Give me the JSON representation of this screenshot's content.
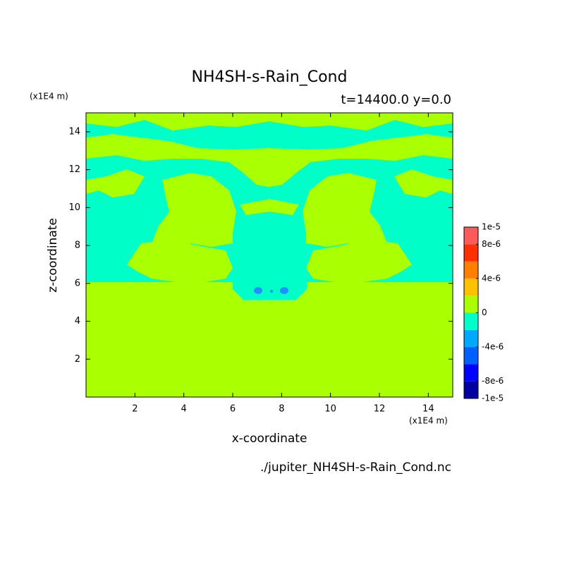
{
  "chart_data": {
    "type": "contour",
    "title": "NH4SH-s-Rain_Cond",
    "subtitle": "t=14400.0 y=0.0",
    "xlabel": "x-coordinate",
    "ylabel": "z-coordinate",
    "x_unit": "(x1E4 m)",
    "y_unit": "(x1E4 m)",
    "footer": "./jupiter_NH4SH-s-Rain_Cond.nc",
    "xlim": [
      0,
      15
    ],
    "ylim": [
      0,
      15
    ],
    "xticks": [
      2,
      4,
      6,
      8,
      10,
      12,
      14
    ],
    "yticks": [
      2,
      4,
      6,
      8,
      10,
      12,
      14
    ],
    "colorbar": {
      "bounds": [
        -1e-05,
        -8e-06,
        -6e-06,
        -4e-06,
        -2e-06,
        0,
        2e-06,
        4e-06,
        6e-06,
        8e-06,
        1e-05
      ],
      "colors": [
        "#0000a0",
        "#0000ff",
        "#0060ff",
        "#00a8ff",
        "#00ffc8",
        "#aaff00",
        "#ffc000",
        "#ff8000",
        "#ff3000",
        "#ff5a5a"
      ],
      "ticks": [
        {
          "value": 1e-05,
          "label": "1e-5"
        },
        {
          "value": 8e-06,
          "label": "8e-6"
        },
        {
          "value": 4e-06,
          "label": "4e-6"
        },
        0,
        {
          "value": -4e-06,
          "label": "-4e-6"
        },
        {
          "value": -8e-06,
          "label": "-8e-6"
        },
        {
          "value": -1e-05,
          "label": "-1e-5"
        }
      ]
    }
  }
}
